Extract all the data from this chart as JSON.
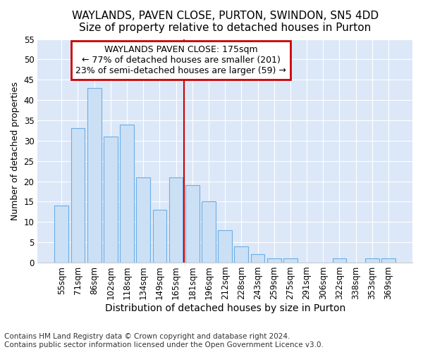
{
  "title": "WAYLANDS, PAVEN CLOSE, PURTON, SWINDON, SN5 4DD",
  "subtitle": "Size of property relative to detached houses in Purton",
  "xlabel": "Distribution of detached houses by size in Purton",
  "ylabel": "Number of detached properties",
  "categories": [
    "55sqm",
    "71sqm",
    "86sqm",
    "102sqm",
    "118sqm",
    "134sqm",
    "149sqm",
    "165sqm",
    "181sqm",
    "196sqm",
    "212sqm",
    "228sqm",
    "243sqm",
    "259sqm",
    "275sqm",
    "291sqm",
    "306sqm",
    "322sqm",
    "338sqm",
    "353sqm",
    "369sqm"
  ],
  "values": [
    14,
    33,
    43,
    31,
    34,
    21,
    13,
    21,
    19,
    15,
    8,
    4,
    2,
    1,
    1,
    0,
    0,
    1,
    0,
    1,
    1
  ],
  "bar_color": "#cce0f5",
  "bar_edge_color": "#6aaee8",
  "highlight_line_label": "WAYLANDS PAVEN CLOSE: 175sqm",
  "annotation_line1": "← 77% of detached houses are smaller (201)",
  "annotation_line2": "23% of semi-detached houses are larger (59) →",
  "annotation_box_color": "#ffffff",
  "annotation_box_edge": "#cc0000",
  "vline_color": "#cc0000",
  "vline_x": 7.5,
  "ylim": [
    0,
    55
  ],
  "yticks": [
    0,
    5,
    10,
    15,
    20,
    25,
    30,
    35,
    40,
    45,
    50,
    55
  ],
  "footnote1": "Contains HM Land Registry data © Crown copyright and database right 2024.",
  "footnote2": "Contains public sector information licensed under the Open Government Licence v3.0.",
  "bg_color": "#ffffff",
  "plot_bg_color": "#dce8f8",
  "title_fontsize": 11,
  "subtitle_fontsize": 10,
  "xlabel_fontsize": 10,
  "ylabel_fontsize": 9,
  "tick_fontsize": 8.5,
  "footnote_fontsize": 7.5,
  "annotation_fontsize": 9
}
